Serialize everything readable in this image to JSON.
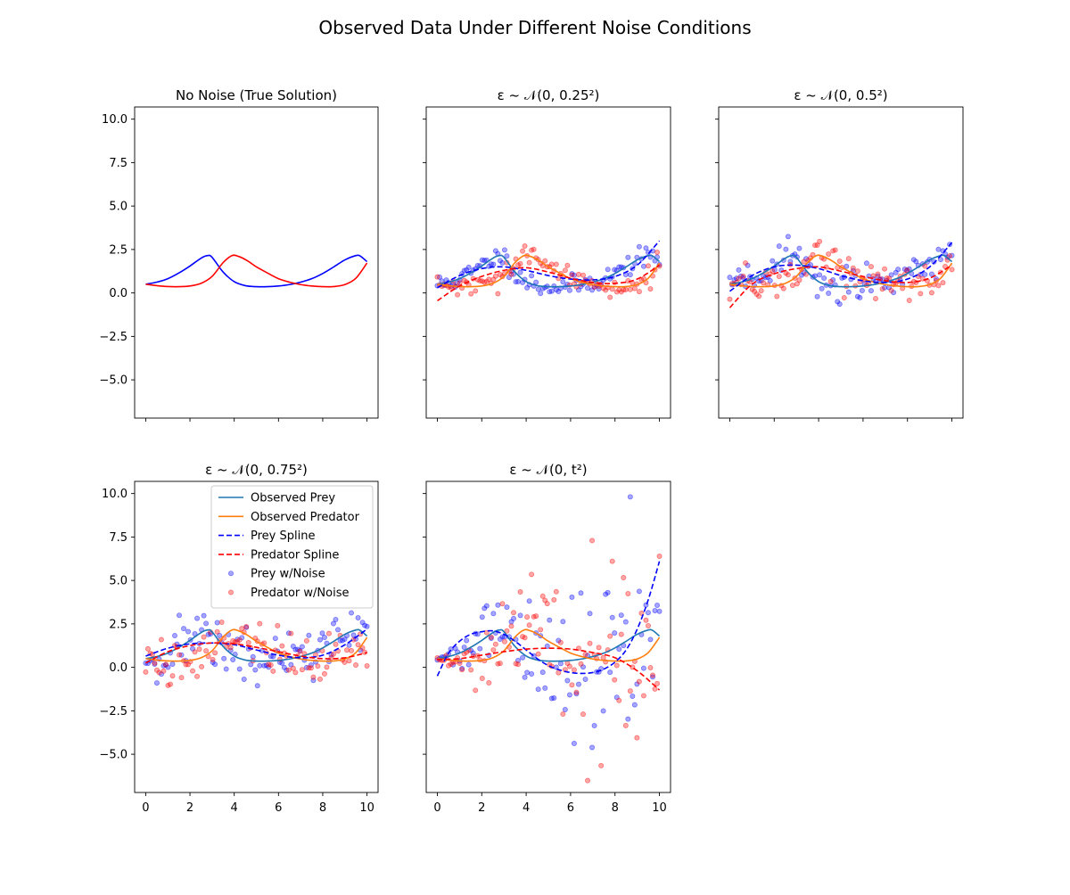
{
  "figure": {
    "title": "Observed Data Under Different Noise Conditions"
  },
  "chart_data": [
    {
      "type": "line",
      "title": "No Noise (True Solution)",
      "xlim": [
        -0.5,
        10.5
      ],
      "ylim": [
        -7.2,
        10.7
      ],
      "yticks": [
        "10.0",
        "7.5",
        "5.0",
        "2.5",
        "0.0",
        "−2.5",
        "−5.0"
      ],
      "xticks": [],
      "show_yticklabels": true,
      "show_xticklabels": false,
      "series": [
        {
          "key": "true_prey",
          "color": "#0000ff",
          "style": "solid",
          "x": [
            0,
            0.5,
            1,
            1.5,
            2,
            2.5,
            2.8,
            3,
            3.5,
            4,
            4.5,
            5,
            5.5,
            6,
            6.5,
            7,
            7.5,
            8,
            8.5,
            9,
            9.5,
            9.7,
            10
          ],
          "y": [
            0.5,
            0.62,
            0.82,
            1.15,
            1.55,
            2.0,
            2.15,
            2.05,
            1.2,
            0.65,
            0.42,
            0.36,
            0.36,
            0.4,
            0.48,
            0.62,
            0.82,
            1.12,
            1.5,
            1.9,
            2.15,
            2.12,
            1.8
          ]
        },
        {
          "key": "true_pred",
          "color": "#ff0000",
          "style": "solid",
          "x": [
            0,
            0.5,
            1,
            1.5,
            2,
            2.5,
            3,
            3.5,
            3.9,
            4.2,
            4.6,
            5,
            5.5,
            6,
            6.5,
            7,
            7.5,
            8,
            8.5,
            9,
            9.5,
            10
          ],
          "y": [
            0.5,
            0.42,
            0.37,
            0.36,
            0.4,
            0.55,
            0.95,
            1.75,
            2.15,
            2.1,
            1.85,
            1.5,
            1.15,
            0.82,
            0.62,
            0.48,
            0.4,
            0.36,
            0.37,
            0.48,
            0.85,
            1.72
          ]
        }
      ]
    },
    {
      "type": "line",
      "title": "ε ~ 𝒩(0, 0.25²)",
      "xlim": [
        -0.5,
        10.5
      ],
      "ylim": [
        -7.2,
        10.7
      ],
      "yticks": [],
      "show_yticklabels": false,
      "show_xticklabels": false,
      "series": [
        {
          "key": "obs_prey",
          "color": "#1f77b4",
          "style": "solid",
          "x": [
            0,
            0.5,
            1,
            1.5,
            2,
            2.5,
            2.8,
            3,
            3.5,
            4,
            4.5,
            5,
            5.5,
            6,
            6.5,
            7,
            7.5,
            8,
            8.5,
            9,
            9.5,
            9.7,
            10
          ],
          "y": [
            0.5,
            0.62,
            0.82,
            1.15,
            1.55,
            2.0,
            2.15,
            2.05,
            1.2,
            0.65,
            0.42,
            0.36,
            0.36,
            0.4,
            0.48,
            0.62,
            0.82,
            1.12,
            1.5,
            1.9,
            2.15,
            2.12,
            1.8
          ]
        },
        {
          "key": "obs_pred",
          "color": "#ff7f0e",
          "style": "solid",
          "x": [
            0,
            0.5,
            1,
            1.5,
            2,
            2.5,
            3,
            3.5,
            3.9,
            4.2,
            4.6,
            5,
            5.5,
            6,
            6.5,
            7,
            7.5,
            8,
            8.5,
            9,
            9.5,
            10
          ],
          "y": [
            0.5,
            0.42,
            0.37,
            0.36,
            0.4,
            0.55,
            0.95,
            1.75,
            2.15,
            2.1,
            1.85,
            1.5,
            1.15,
            0.82,
            0.62,
            0.48,
            0.4,
            0.36,
            0.37,
            0.48,
            0.85,
            1.72
          ]
        },
        {
          "key": "spline_prey",
          "color": "#0000ff",
          "style": "dashed",
          "x": [
            0,
            1,
            2,
            3,
            4,
            5,
            6,
            7,
            8,
            9,
            10
          ],
          "y": [
            0.3,
            1.0,
            1.4,
            1.5,
            1.3,
            1.0,
            0.8,
            0.75,
            0.95,
            1.6,
            3.0
          ]
        },
        {
          "key": "spline_pred",
          "color": "#ff0000",
          "style": "dashed",
          "x": [
            0,
            1,
            2,
            3,
            4,
            5,
            6,
            7,
            8,
            9,
            10
          ],
          "y": [
            -0.45,
            0.4,
            0.95,
            1.3,
            1.45,
            1.2,
            0.85,
            0.6,
            0.55,
            0.8,
            1.6
          ]
        }
      ],
      "scatter": [
        {
          "key": "noisy_prey",
          "color": "#0000ff",
          "noise": 0.3,
          "seed": 11
        },
        {
          "key": "noisy_pred",
          "color": "#ff0000",
          "noise": 0.3,
          "seed": 29
        }
      ]
    },
    {
      "type": "line",
      "title": "ε ~ 𝒩(0, 0.5²)",
      "xlim": [
        -0.5,
        10.5
      ],
      "ylim": [
        -7.2,
        10.7
      ],
      "yticks": [],
      "show_yticklabels": false,
      "show_xticklabels": false,
      "series": [
        {
          "key": "obs_prey",
          "color": "#1f77b4",
          "style": "solid",
          "x": [
            0,
            0.5,
            1,
            1.5,
            2,
            2.5,
            2.8,
            3,
            3.5,
            4,
            4.5,
            5,
            5.5,
            6,
            6.5,
            7,
            7.5,
            8,
            8.5,
            9,
            9.5,
            9.7,
            10
          ],
          "y": [
            0.5,
            0.62,
            0.82,
            1.15,
            1.55,
            2.0,
            2.15,
            2.05,
            1.2,
            0.65,
            0.42,
            0.36,
            0.36,
            0.4,
            0.48,
            0.62,
            0.82,
            1.12,
            1.5,
            1.9,
            2.15,
            2.12,
            1.8
          ]
        },
        {
          "key": "obs_pred",
          "color": "#ff7f0e",
          "style": "solid",
          "x": [
            0,
            0.5,
            1,
            1.5,
            2,
            2.5,
            3,
            3.5,
            3.9,
            4.2,
            4.6,
            5,
            5.5,
            6,
            6.5,
            7,
            7.5,
            8,
            8.5,
            9,
            9.5,
            10
          ],
          "y": [
            0.5,
            0.42,
            0.37,
            0.36,
            0.4,
            0.55,
            0.95,
            1.75,
            2.15,
            2.1,
            1.85,
            1.5,
            1.15,
            0.82,
            0.62,
            0.48,
            0.4,
            0.36,
            0.37,
            0.48,
            0.85,
            1.72
          ]
        },
        {
          "key": "spline_prey",
          "color": "#0000ff",
          "style": "dashed",
          "x": [
            0,
            1,
            2,
            3,
            4,
            5,
            6,
            7,
            8,
            9,
            10
          ],
          "y": [
            0.1,
            1.0,
            1.5,
            1.6,
            1.4,
            1.0,
            0.7,
            0.6,
            0.8,
            1.5,
            2.9
          ]
        },
        {
          "key": "spline_pred",
          "color": "#ff0000",
          "style": "dashed",
          "x": [
            0,
            1,
            2,
            3,
            4,
            5,
            6,
            7,
            8,
            9,
            10
          ],
          "y": [
            -0.85,
            0.5,
            1.1,
            1.4,
            1.5,
            1.25,
            0.95,
            0.7,
            0.6,
            0.85,
            1.6
          ]
        }
      ],
      "scatter": [
        {
          "key": "noisy_prey",
          "color": "#0000ff",
          "noise": 0.55,
          "seed": 43
        },
        {
          "key": "noisy_pred",
          "color": "#ff0000",
          "noise": 0.55,
          "seed": 57
        }
      ]
    },
    {
      "type": "line",
      "title": "ε ~ 𝒩(0, 0.75²)",
      "xlim": [
        -0.5,
        10.5
      ],
      "ylim": [
        -7.2,
        10.7
      ],
      "yticks": [
        "10.0",
        "7.5",
        "5.0",
        "2.5",
        "0.0",
        "−2.5",
        "−5.0"
      ],
      "xticks": [
        "0",
        "2",
        "4",
        "6",
        "8",
        "10"
      ],
      "show_yticklabels": true,
      "show_xticklabels": true,
      "series": [
        {
          "key": "obs_prey",
          "color": "#1f77b4",
          "style": "solid",
          "x": [
            0,
            0.5,
            1,
            1.5,
            2,
            2.5,
            2.8,
            3,
            3.5,
            4,
            4.5,
            5,
            5.5,
            6,
            6.5,
            7,
            7.5,
            8,
            8.5,
            9,
            9.5,
            9.7,
            10
          ],
          "y": [
            0.5,
            0.62,
            0.82,
            1.15,
            1.55,
            2.0,
            2.15,
            2.05,
            1.2,
            0.65,
            0.42,
            0.36,
            0.36,
            0.4,
            0.48,
            0.62,
            0.82,
            1.12,
            1.5,
            1.9,
            2.15,
            2.12,
            1.8
          ]
        },
        {
          "key": "obs_pred",
          "color": "#ff7f0e",
          "style": "solid",
          "x": [
            0,
            0.5,
            1,
            1.5,
            2,
            2.5,
            3,
            3.5,
            3.9,
            4.2,
            4.6,
            5,
            5.5,
            6,
            6.5,
            7,
            7.5,
            8,
            8.5,
            9,
            9.5,
            10
          ],
          "y": [
            0.5,
            0.42,
            0.37,
            0.36,
            0.4,
            0.55,
            0.95,
            1.75,
            2.15,
            2.1,
            1.85,
            1.5,
            1.15,
            0.82,
            0.62,
            0.48,
            0.4,
            0.36,
            0.37,
            0.48,
            0.85,
            1.72
          ]
        },
        {
          "key": "spline_prey",
          "color": "#0000ff",
          "style": "dashed",
          "x": [
            0,
            1,
            2,
            3,
            4,
            5,
            6,
            7,
            8,
            9,
            10
          ],
          "y": [
            0.65,
            1.1,
            1.35,
            1.4,
            1.3,
            1.0,
            0.7,
            0.55,
            0.7,
            1.3,
            2.2
          ]
        },
        {
          "key": "spline_pred",
          "color": "#ff0000",
          "style": "dashed",
          "x": [
            0,
            1,
            2,
            3,
            4,
            5,
            6,
            7,
            8,
            9,
            10
          ],
          "y": [
            0.25,
            0.9,
            1.25,
            1.4,
            1.35,
            1.15,
            0.9,
            0.65,
            0.5,
            0.55,
            0.85
          ]
        }
      ],
      "scatter": [
        {
          "key": "noisy_prey",
          "color": "#0000ff",
          "noise": 0.8,
          "seed": 71
        },
        {
          "key": "noisy_pred",
          "color": "#ff0000",
          "noise": 0.8,
          "seed": 89
        }
      ],
      "legend": {
        "placement": "upper-right",
        "entries": [
          {
            "label": "Observed Prey",
            "kind": "line",
            "color": "#1f77b4",
            "style": "solid"
          },
          {
            "label": "Observed Predator",
            "kind": "line",
            "color": "#ff7f0e",
            "style": "solid"
          },
          {
            "label": "Prey Spline",
            "kind": "line",
            "color": "#0000ff",
            "style": "dashed"
          },
          {
            "label": "Predator Spline",
            "kind": "line",
            "color": "#ff0000",
            "style": "dashed"
          },
          {
            "label": "Prey w/Noise",
            "kind": "marker",
            "color": "#0000ff"
          },
          {
            "label": "Predator w/Noise",
            "kind": "marker",
            "color": "#ff0000"
          }
        ]
      }
    },
    {
      "type": "line",
      "title": "ε ~ 𝒩(0, t²)",
      "xlim": [
        -0.5,
        10.5
      ],
      "ylim": [
        -7.2,
        10.7
      ],
      "yticks": [],
      "xticks": [
        "0",
        "2",
        "4",
        "6",
        "8",
        "10"
      ],
      "show_yticklabels": false,
      "show_xticklabels": true,
      "series": [
        {
          "key": "obs_prey",
          "color": "#1f77b4",
          "style": "solid",
          "x": [
            0,
            0.5,
            1,
            1.5,
            2,
            2.5,
            2.8,
            3,
            3.5,
            4,
            4.5,
            5,
            5.5,
            6,
            6.5,
            7,
            7.5,
            8,
            8.5,
            9,
            9.5,
            9.7,
            10
          ],
          "y": [
            0.5,
            0.62,
            0.82,
            1.15,
            1.55,
            2.0,
            2.15,
            2.05,
            1.2,
            0.65,
            0.42,
            0.36,
            0.36,
            0.4,
            0.48,
            0.62,
            0.82,
            1.12,
            1.5,
            1.9,
            2.15,
            2.12,
            1.8
          ]
        },
        {
          "key": "obs_pred",
          "color": "#ff7f0e",
          "style": "solid",
          "x": [
            0,
            0.5,
            1,
            1.5,
            2,
            2.5,
            3,
            3.5,
            3.9,
            4.2,
            4.6,
            5,
            5.5,
            6,
            6.5,
            7,
            7.5,
            8,
            8.5,
            9,
            9.5,
            10
          ],
          "y": [
            0.5,
            0.42,
            0.37,
            0.36,
            0.4,
            0.55,
            0.95,
            1.75,
            2.15,
            2.1,
            1.85,
            1.5,
            1.15,
            0.82,
            0.62,
            0.48,
            0.4,
            0.36,
            0.37,
            0.48,
            0.85,
            1.72
          ]
        },
        {
          "key": "spline_prey",
          "color": "#0000ff",
          "style": "dashed",
          "x": [
            0,
            0.5,
            1,
            1.5,
            2,
            2.5,
            3,
            3.5,
            4,
            4.5,
            5,
            5.5,
            6,
            6.5,
            7,
            7.5,
            8,
            8.5,
            9,
            9.5,
            10
          ],
          "y": [
            -0.5,
            0.8,
            1.5,
            1.9,
            2.05,
            2.1,
            1.9,
            1.5,
            1.0,
            0.5,
            0.1,
            -0.15,
            -0.3,
            -0.35,
            -0.3,
            -0.1,
            0.3,
            1.0,
            2.2,
            3.9,
            6.1
          ]
        },
        {
          "key": "spline_pred",
          "color": "#ff0000",
          "style": "dashed",
          "x": [
            0,
            1,
            2,
            3,
            4,
            5,
            6,
            7,
            8,
            9,
            10
          ],
          "y": [
            0.45,
            0.5,
            0.7,
            0.9,
            1.05,
            1.1,
            1.05,
            0.85,
            0.55,
            -0.2,
            -1.3
          ]
        }
      ],
      "scatter": [
        {
          "key": "noisy_prey",
          "color": "#0000ff",
          "noise": "t",
          "seed": 101
        },
        {
          "key": "noisy_pred",
          "color": "#ff0000",
          "noise": "t",
          "seed": 131
        }
      ]
    }
  ]
}
